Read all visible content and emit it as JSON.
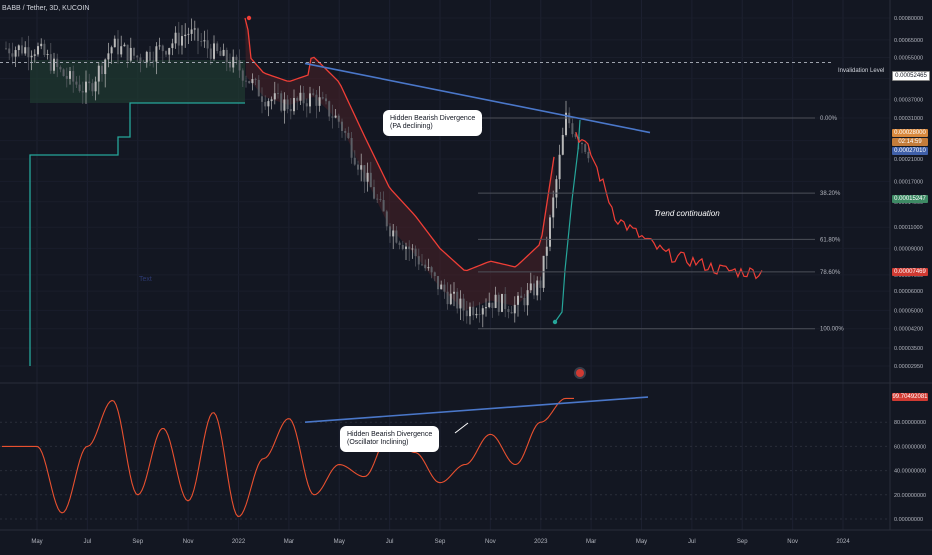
{
  "header": {
    "symbol_line": "BABB / Tether, 3D, KUCOIN"
  },
  "colors": {
    "background": "#131722",
    "candle_up": "#b8b8b8",
    "candle_down": "#5c5f66",
    "supertrend_down": "#ef3e36",
    "supertrend_up": "#26a69a",
    "trendline": "#4a77c9",
    "oscillator": "#e8502f",
    "fib_line": "#4c4f58"
  },
  "price_axis": {
    "ticks": [
      "0.00080000",
      "0.00065000",
      "0.00055000",
      "0.00045000",
      "0.00037000",
      "0.00031000",
      "0.00025000",
      "0.00021000",
      "0.00017000",
      "0.00014000",
      "0.00011000",
      "0.00009000",
      "0.00007000",
      "0.00006000",
      "0.00005000",
      "0.00004200",
      "0.00003500",
      "0.00002950"
    ],
    "invalidation_label": "Invalidation Level",
    "invalidation_value": "0.00052465",
    "badges": [
      {
        "text": "0.00028000",
        "color": "#d9893e"
      },
      {
        "text": "02:14:59",
        "color": "#c47c3a"
      },
      {
        "text": "0.00027010",
        "color": "#3f5fa8"
      },
      {
        "text": "0.00015247",
        "color": "#3d8a64"
      },
      {
        "text": "0.00007469",
        "color": "#d03a32"
      }
    ]
  },
  "osc_axis": {
    "ticks": [
      "80.00000000",
      "60.00000000",
      "40.00000000",
      "20.00000000",
      "0.00000000"
    ],
    "badge": "99.70492081"
  },
  "time_axis": {
    "ticks": [
      "May",
      "Jul",
      "Sep",
      "Nov",
      "2022",
      "Mar",
      "May",
      "Jul",
      "Sep",
      "Nov",
      "2023",
      "Mar",
      "May",
      "Jul",
      "Sep",
      "Nov",
      "2024"
    ]
  },
  "fibonacci": [
    {
      "label": "0.00%"
    },
    {
      "label": "38.20%"
    },
    {
      "label": "61.80%"
    },
    {
      "label": "78.60%"
    },
    {
      "label": "100.00%"
    }
  ],
  "annotations": {
    "price_divergence": "Hidden Bearish Divergence\n(PA declining)",
    "osc_divergence": "Hidden Bearish Divergence\n(Oscillator Inclining)",
    "trend": "Trend continuation",
    "faint_text": "Text"
  },
  "chart_data": [
    {
      "type": "line",
      "title": "BABB / Tether, 3D, KUCOIN",
      "xlabel": "",
      "ylabel": "",
      "scale": "log",
      "ylim": [
        2.95e-05,
        0.0008
      ],
      "x_range": [
        "2021-05",
        "2024-01"
      ],
      "series": [
        {
          "points": [
            [
              "2021-05",
              0.0006
            ],
            [
              "2021-06",
              0.00047
            ],
            [
              "2021-07",
              0.0004
            ],
            [
              "2021-08",
              0.00062
            ],
            [
              "2021-09",
              0.00055
            ],
            [
              "2021-10",
              0.0006
            ],
            [
              "2021-11",
              0.0007
            ],
            [
              "2021-12",
              0.00058
            ],
            [
              "2022-01",
              0.0005
            ],
            [
              "2022-02",
              0.00038
            ],
            [
              "2022-03",
              0.00035
            ],
            [
              "2022-04",
              0.00038
            ],
            [
              "2022-05",
              0.0003
            ],
            [
              "2022-06",
              0.00018
            ],
            [
              "2022-07",
              0.00011
            ],
            [
              "2022-08",
              8.5e-05
            ],
            [
              "2022-09",
              6.2e-05
            ],
            [
              "2022-10",
              5e-05
            ],
            [
              "2022-11",
              5.5e-05
            ],
            [
              "2022-12",
              5.2e-05
            ],
            [
              "2023-01",
              6.5e-05
            ],
            [
              "2023-02",
              0.00031
            ],
            [
              "2023-03",
              0.00022
            ],
            [
              "2023-04",
              0.00012
            ],
            [
              "2023-05",
              0.0001
            ],
            [
              "2023-06",
              8.5e-05
            ],
            [
              "2023-07",
              8e-05
            ],
            [
              "2023-08",
              7.4e-05
            ],
            [
              "2023-09",
              7.2e-05
            ]
          ]
        }
      ],
      "horizontal_levels": [
        {
          "name": "Invalidation Level",
          "value": 0.00052465
        },
        {
          "name": "0.00%",
          "value": 0.00031
        },
        {
          "name": "38.20%",
          "value": 0.000152
        },
        {
          "name": "61.80%",
          "value": 9.8e-05
        },
        {
          "name": "78.60%",
          "value": 7.2e-05
        },
        {
          "name": "100.00%",
          "value": 4.2e-05
        }
      ]
    },
    {
      "type": "line",
      "ylim": [
        0,
        100
      ],
      "series": [
        {
          "points": [
            [
              "2021-05",
              60
            ],
            [
              "2021-06",
              5
            ],
            [
              "2021-07",
              60
            ],
            [
              "2021-08",
              98
            ],
            [
              "2021-09",
              20
            ],
            [
              "2021-10",
              75
            ],
            [
              "2021-11",
              15
            ],
            [
              "2021-12",
              88
            ],
            [
              "2022-01",
              2
            ],
            [
              "2022-02",
              50
            ],
            [
              "2022-03",
              83
            ],
            [
              "2022-04",
              20
            ],
            [
              "2022-05",
              45
            ],
            [
              "2022-06",
              35
            ],
            [
              "2022-07",
              70
            ],
            [
              "2022-08",
              55
            ],
            [
              "2022-09",
              30
            ],
            [
              "2022-10",
              45
            ],
            [
              "2022-11",
              70
            ],
            [
              "2022-12",
              45
            ],
            [
              "2023-01",
              80
            ],
            [
              "2023-02",
              99.7
            ]
          ]
        }
      ]
    }
  ]
}
